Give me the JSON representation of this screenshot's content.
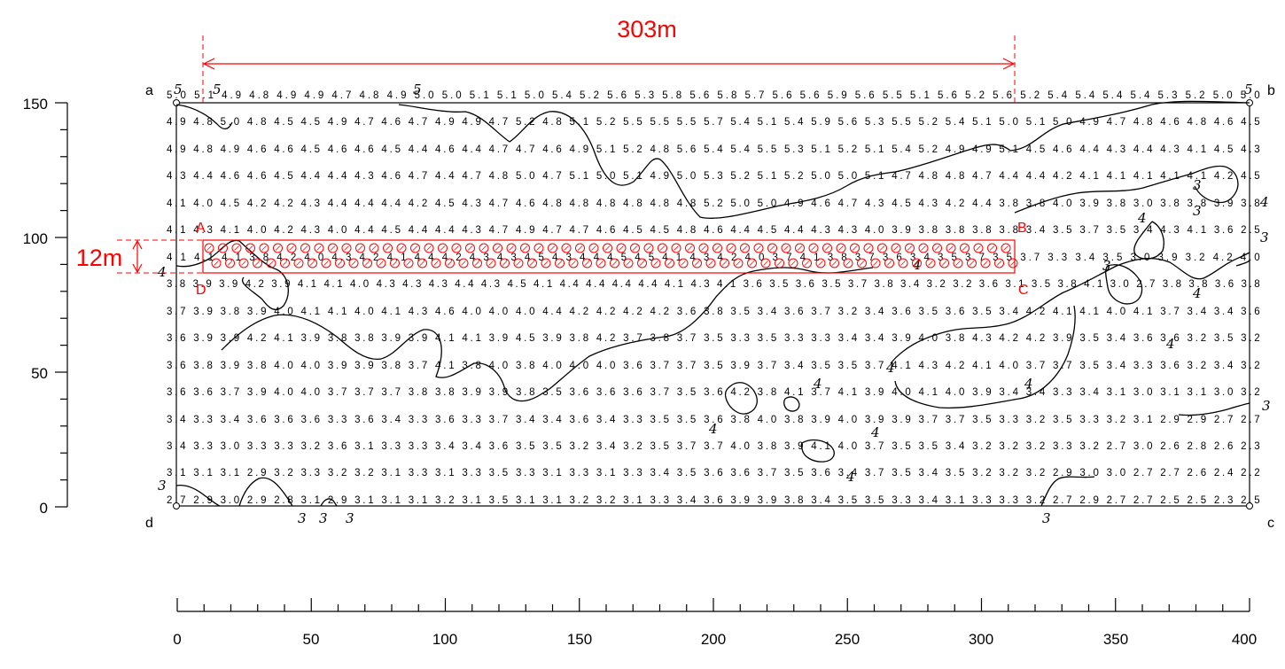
{
  "dimension_303": "303m",
  "dimension_12": "12m",
  "corners": [
    "a",
    "b",
    "c",
    "d"
  ],
  "area_points": [
    "A",
    "B",
    "C",
    "D"
  ],
  "y_axis": {
    "ticks": [
      "150",
      "100",
      "50",
      "0"
    ],
    "range": [
      0,
      150
    ]
  },
  "x_axis": {
    "ticks": [
      "0",
      "50",
      "100",
      "150",
      "200",
      "250",
      "300",
      "350",
      "400"
    ],
    "range": [
      0,
      400
    ]
  },
  "contour_labels": {
    "top": [
      "5",
      "5",
      "5",
      "5"
    ],
    "left": [
      "4",
      "3"
    ],
    "right": [
      "4",
      "3",
      "3"
    ],
    "bottom": [
      "3",
      "3",
      "3",
      "3"
    ],
    "inner": [
      "4",
      "4",
      "4",
      "4",
      "4",
      "4",
      "4",
      "4",
      "4",
      "4",
      "3",
      "3",
      "3"
    ]
  },
  "grid_rows": [
    "5.0 5.1 4.9 4.8 4.9 4.9 4.7 4.8 4.9 5.0 5.0 5.1 5.1 5.0 5.4 5.2 5.6 5.3 5.8 5.6 5.8 5.7 5.6 5.6 5.9 5.6 5.5 5.1 5.6 5.2 5.6 5.2 5.4 5.4 5.4 5.4 5.3 5.2 5.0 5.0",
    "4.9 4.8 5.0 4.8 4.5 4.5 4.9 4.7 4.6 4.7 4.9 4.9 4.7 5.2 4.8 5.1 5.2 5.5 5.5 5.5 5.7 5.4 5.1 5.4 5.9 5.6 5.3 5.5 5.2 5.4 5.1 5.0 5.1 5.0 4.9 4.7 4.8 4.6 4.8 4.6 4.5",
    "4.9 4.8 4.9 4.6 4.6 4.5 4.6 4.6 4.5 4.4 4.6 4.4 4.7 4.7 4.6 4.9 5.1 5.2 4.8 5.6 5.4 5.4 5.5 5.3 5.1 5.2 5.1 5.4 5.2 4.9 4.9 5.1 4.5 4.6 4.4 4.3 4.4 4.3 4.1 4.5 4.3",
    "4.3 4.4 4.6 4.6 4.5 4.4 4.4 4.3 4.6 4.7 4.4 4.7 4.8 5.0 4.7 5.1 5.0 5.1 4.9 5.0 5.3 5.2 5.1 5.2 5.0 5.0 5.1 4.7 4.8 4.8 4.7 4.4 4.4 4.2 4.1 4.1 4.1 4.1 4.1 4.2 4.5",
    "4.1 4.0 4.5 4.2 4.2 4.3 4.4 4.4 4.4 4.2 4.5 4.3 4.7 4.6 4.8 4.8 4.8 4.8 4.8 4.8 5.2 5.0 5.0 4.9 4.6 4.7 4.3 4.5 4.3 4.2 4.4 3.8 3.8 4.0 3.9 3.8 3.0 3.8 3.8 3.9 3.8",
    "4.1 4.3 4.1 4.0 4.2 4.3 4.0 4.4 4.5 4.4 4.4 4.3 4.7 4.9 4.7 4.7 4.6 4.5 4.5 4.8 4.6 4.4 4.5 4.4 4.3 4.3 4.0 3.9 3.8 3.8 3.8 3.8 3.4 3.5 3.7 3.5 3.4 4.3 4.1 3.6 2.5",
    "4.1 4.1 4.1 3.8 4.2 4.0 4.3 4.2 4.1 4.4 4.2 4.3 4.3 4.5 4.3 4.4 4.5 4.5 4.1 4.3 4.2 4.0 3.7 4.1 3.8 3.7 3.6 3.4 3.5 3.7 3.5 3.7 3.3 3.4 3.5 3.0 3.9 3.2 4.2 4.0",
    "3.8 3.9 3.9 4.2 3.9 4.1 4.1 4.0 4.3 4.3 4.3 4.4 4.3 4.5 4.1 4.4 4.4 4.4 4.4 4.1 4.3 4.1 3.6 3.5 3.6 3.5 3.7 3.8 3.4 3.2 3.2 3.6 3.1 3.5 3.8 4.1 3.0 2.7 3.8 3.8 3.6 3.8",
    "3.7 3.9 3.8 3.9 4.0 4.1 4.1 4.0 4.1 4.3 4.6 4.0 4.0 4.0 4.4 4.2 4.2 4.2 4.2 3.6 3.8 3.5 3.4 3.6 3.7 3.2 3.4 3.6 3.5 3.6 3.5 3.4 4.2 4.1 4.1 4.0 4.1 3.7 3.4 3.4 3.6",
    "3.6 3.9 3.9 4.2 4.1 3.9 3.8 3.8 3.9 3.9 4.1 4.1 3.9 4.5 3.9 3.8 4.2 3.7 3.8 3.7 3.5 3.3 3.5 3.3 3.3 3.4 3.4 3.9 4.0 3.8 4.3 4.2 4.2 3.9 3.5 3.4 3.6 3.6 3.2 3.5 3.2",
    "3.6 3.8 3.9 3.8 4.0 4.0 3.9 3.9 3.8 3.7 4.1 3.8 4.0 3.8 4.0 4.0 4.0 3.6 3.7 3.7 3.5 3.9 3.7 3.4 3.5 3.5 3.7 4.1 4.3 4.2 4.1 4.0 3.7 3.7 3.5 3.4 3.3 3.6 3.2 3.4 3.2",
    "3.6 3.6 3.7 3.9 4.0 4.0 3.7 3.7 3.7 3.8 3.8 3.9 3.9 3.8 3.5 3.6 3.6 3.6 3.7 3.5 3.6 4.2 3.8 4.1 3.7 4.1 3.9 4.0 4.1 4.0 3.9 3.4 3.4 3.3 3.4 3.1 3.0 3.1 3.1 3.0 3.2",
    "3.4 3.3 3.4 3.6 3.6 3.6 3.3 3.6 3.4 3.3 3.6 3.3 3.7 3.4 3.4 3.6 3.4 3.3 3.5 3.5 3.6 3.8 4.0 3.8 3.9 4.0 3.9 3.9 3.7 3.7 3.5 3.3 3.2 3.5 3.3 3.2 3.1 2.9 2.9 2.7 2.7",
    "3.4 3.3 3.0 3.3 3.3 3.2 3.6 3.1 3.3 3.3 3.4 3.4 3.6 3.5 3.5 3.2 3.4 3.2 3.5 3.7 3.7 4.0 3.8 3.9 4.1 4.0 3.7 3.5 3.5 3.4 3.2 3.2 3.2 3.3 3.2 2.7 3.0 2.6 2.8 2.6 2.3",
    "3.1 3.1 3.1 2.9 3.2 3.3 3.2 3.2 3.1 3.3 3.1 3.3 3.5 3.3 3.1 3.3 3.1 3.3 3.4 3.5 3.6 3.6 3.7 3.5 3.6 3.4 3.7 3.5 3.4 3.5 3.2 3.2 3.2 2.9 3.0 3.0 2.7 2.7 2.6 2.4 2.2",
    "2.7 2.9 3.0 2.9 2.8 3.1 2.9 3.1 3.1 3.1 3.2 3.1 3.5 3.1 3.1 3.2 3.2 3.1 3.3 3.4 3.6 3.9 3.9 3.8 3.4 3.5 3.5 3.3 3.4 3.1 3.3 3.3 3.2 2.7 2.9 2.7 2.7 2.5 2.5 2.3 2.5"
  ]
}
